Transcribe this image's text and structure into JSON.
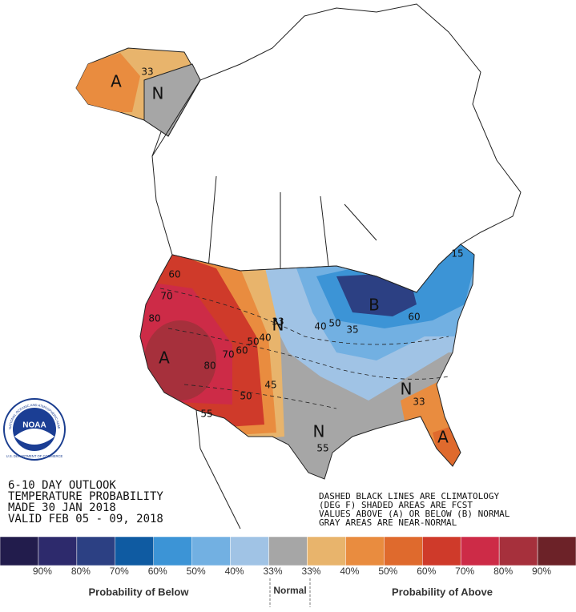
{
  "outlook": {
    "lines": [
      "6-10 DAY OUTLOOK",
      "TEMPERATURE PROBABILITY",
      "MADE  30 JAN 2018",
      "VALID  FEB 05 - 09, 2018"
    ]
  },
  "notes": [
    "DASHED BLACK LINES ARE CLIMATOLOGY",
    "(DEG F) SHADED AREAS ARE FCST",
    "VALUES ABOVE (A) OR BELOW (B) NORMAL",
    "GRAY AREAS ARE NEAR-NORMAL"
  ],
  "logo": {
    "name": "NOAA",
    "ring": "NATIONAL OCEANIC AND ATMOSPHERIC ADMINISTRATION",
    "dept": "U.S. DEPARTMENT OF COMMERCE"
  },
  "map_labels": [
    "A",
    "N",
    "A",
    "N",
    "N",
    "N",
    "B",
    "A",
    "60",
    "70",
    "80",
    "80",
    "70",
    "60",
    "50",
    "40",
    "33",
    "33",
    "40",
    "50",
    "60",
    "45",
    "50",
    "55",
    "55",
    "15",
    "35",
    "33"
  ],
  "legend": {
    "colors": [
      "#221c4c",
      "#2d2a6c",
      "#2c4083",
      "#0f5ba2",
      "#3c94d6",
      "#72b0e2",
      "#a0c3e5",
      "#a6a6a6",
      "#e8b46c",
      "#e98c3f",
      "#df6a2d",
      "#cf3a2a",
      "#cd2b47",
      "#a6303c",
      "#6c2228"
    ],
    "labels": [
      "90%",
      "80%",
      "70%",
      "60%",
      "50%",
      "40%",
      "33%",
      "33%",
      "40%",
      "50%",
      "60%",
      "70%",
      "80%",
      "90%"
    ],
    "below": "Probability of Below",
    "normal": "Normal",
    "above": "Probability of Above"
  }
}
